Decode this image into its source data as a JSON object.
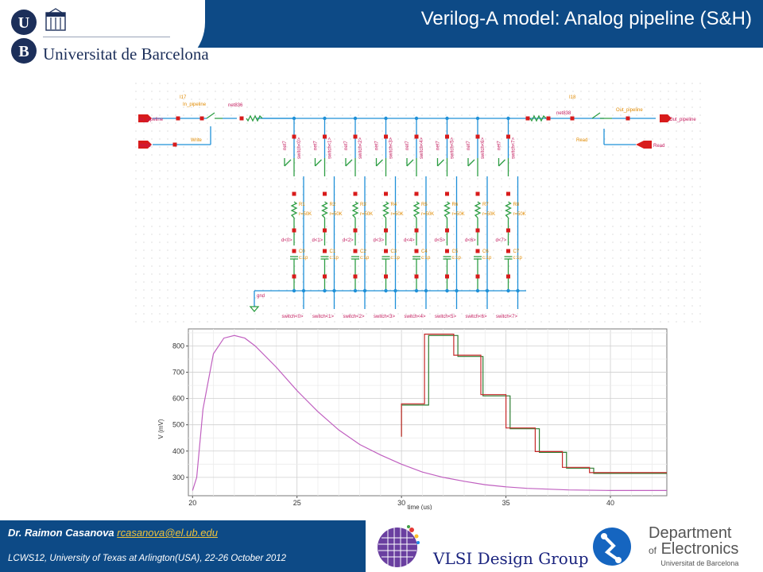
{
  "header": {
    "title": "Verilog-A model: Analog pipeline (S&H)",
    "university_name": "Universitat de Barcelona",
    "seal_letters": [
      "U",
      "B"
    ]
  },
  "schematic": {
    "ports": {
      "in_pipeline": "In_pipeline",
      "write": "Write",
      "out_pipeline": "Out_pipeline",
      "read": "Read"
    },
    "instances": [
      "I17",
      "I18"
    ],
    "nets": [
      "net836",
      "net838",
      "net7",
      "gnd"
    ],
    "switch_labels": [
      "switch<0>",
      "switch<1>",
      "switch<2>",
      "switch<3>",
      "switch<4>",
      "switch<5>",
      "switch<6>",
      "switch<7>"
    ],
    "d_labels": [
      "d<0>",
      "d<1>",
      "d<2>",
      "d<3>",
      "d<4>",
      "d<5>",
      "d<6>",
      "d<7>"
    ],
    "cap_labels": [
      "C0",
      "C1",
      "C2",
      "C3",
      "C4",
      "C5",
      "C6",
      "C7"
    ],
    "res_labels": [
      "R1",
      "R2",
      "R3",
      "R4",
      "R5",
      "R6",
      "R7",
      "R8"
    ],
    "cap_value": "c:1p",
    "res_value": "r=50K"
  },
  "waveform": {
    "ylabel": "V (mV)",
    "xlabel": "time (us)",
    "yticks": [
      "800",
      "700",
      "600",
      "500",
      "400",
      "300"
    ],
    "xticks": [
      "20",
      "25",
      "30",
      "35",
      "40"
    ]
  },
  "chart_data": {
    "type": "line",
    "xlabel": "time (us)",
    "ylabel": "V (mV)",
    "xlim": [
      19.8,
      42.7
    ],
    "ylim": [
      230,
      865
    ],
    "grid": true,
    "series": [
      {
        "color": "#c060c0",
        "x": [
          20,
          20.2,
          20.5,
          21,
          21.5,
          22,
          22.5,
          23,
          24,
          25,
          26,
          27,
          28,
          29,
          30,
          31,
          32,
          33,
          34,
          35,
          36,
          38,
          40,
          42.7
        ],
        "y": [
          250,
          300,
          560,
          770,
          830,
          840,
          830,
          800,
          720,
          630,
          550,
          480,
          425,
          385,
          350,
          320,
          300,
          285,
          272,
          264,
          258,
          252,
          250,
          250
        ]
      },
      {
        "color": "#2e7d32",
        "x": [
          30.0,
          30.0,
          31.3,
          31.3,
          32.7,
          32.7,
          33.9,
          33.9,
          35.2,
          35.2,
          36.6,
          36.6,
          37.9,
          37.9,
          39.2,
          39.2,
          42.7
        ],
        "y": [
          455,
          575,
          575,
          840,
          840,
          760,
          760,
          610,
          610,
          485,
          485,
          395,
          395,
          335,
          335,
          315,
          315
        ]
      },
      {
        "color": "#c62828",
        "x": [
          30.0,
          30.0,
          31.1,
          31.1,
          32.5,
          32.5,
          33.8,
          33.8,
          35.0,
          35.0,
          36.4,
          36.4,
          37.7,
          37.7,
          39.0,
          39.0,
          42.7
        ],
        "y": [
          455,
          580,
          580,
          845,
          845,
          765,
          765,
          615,
          615,
          488,
          488,
          398,
          398,
          338,
          338,
          318,
          318
        ]
      }
    ]
  },
  "footer": {
    "author": "Dr. Raimon Casanova",
    "email": "rcasanova@el.ub.edu",
    "conference": "LCWS12, University of Texas at Arlington(USA), 22-26 October 2012",
    "vlsi_group": "VLSI Design Group",
    "department": "Department",
    "of": "of",
    "electronics": "Electronics",
    "dept_university": "Universitat de Barcelona"
  },
  "colors": {
    "header_band": "#0d4a86",
    "wire": "#1e90d8",
    "component": "#2e9e44",
    "pin": "#d81b1b",
    "accent_email": "#f0c23a"
  }
}
